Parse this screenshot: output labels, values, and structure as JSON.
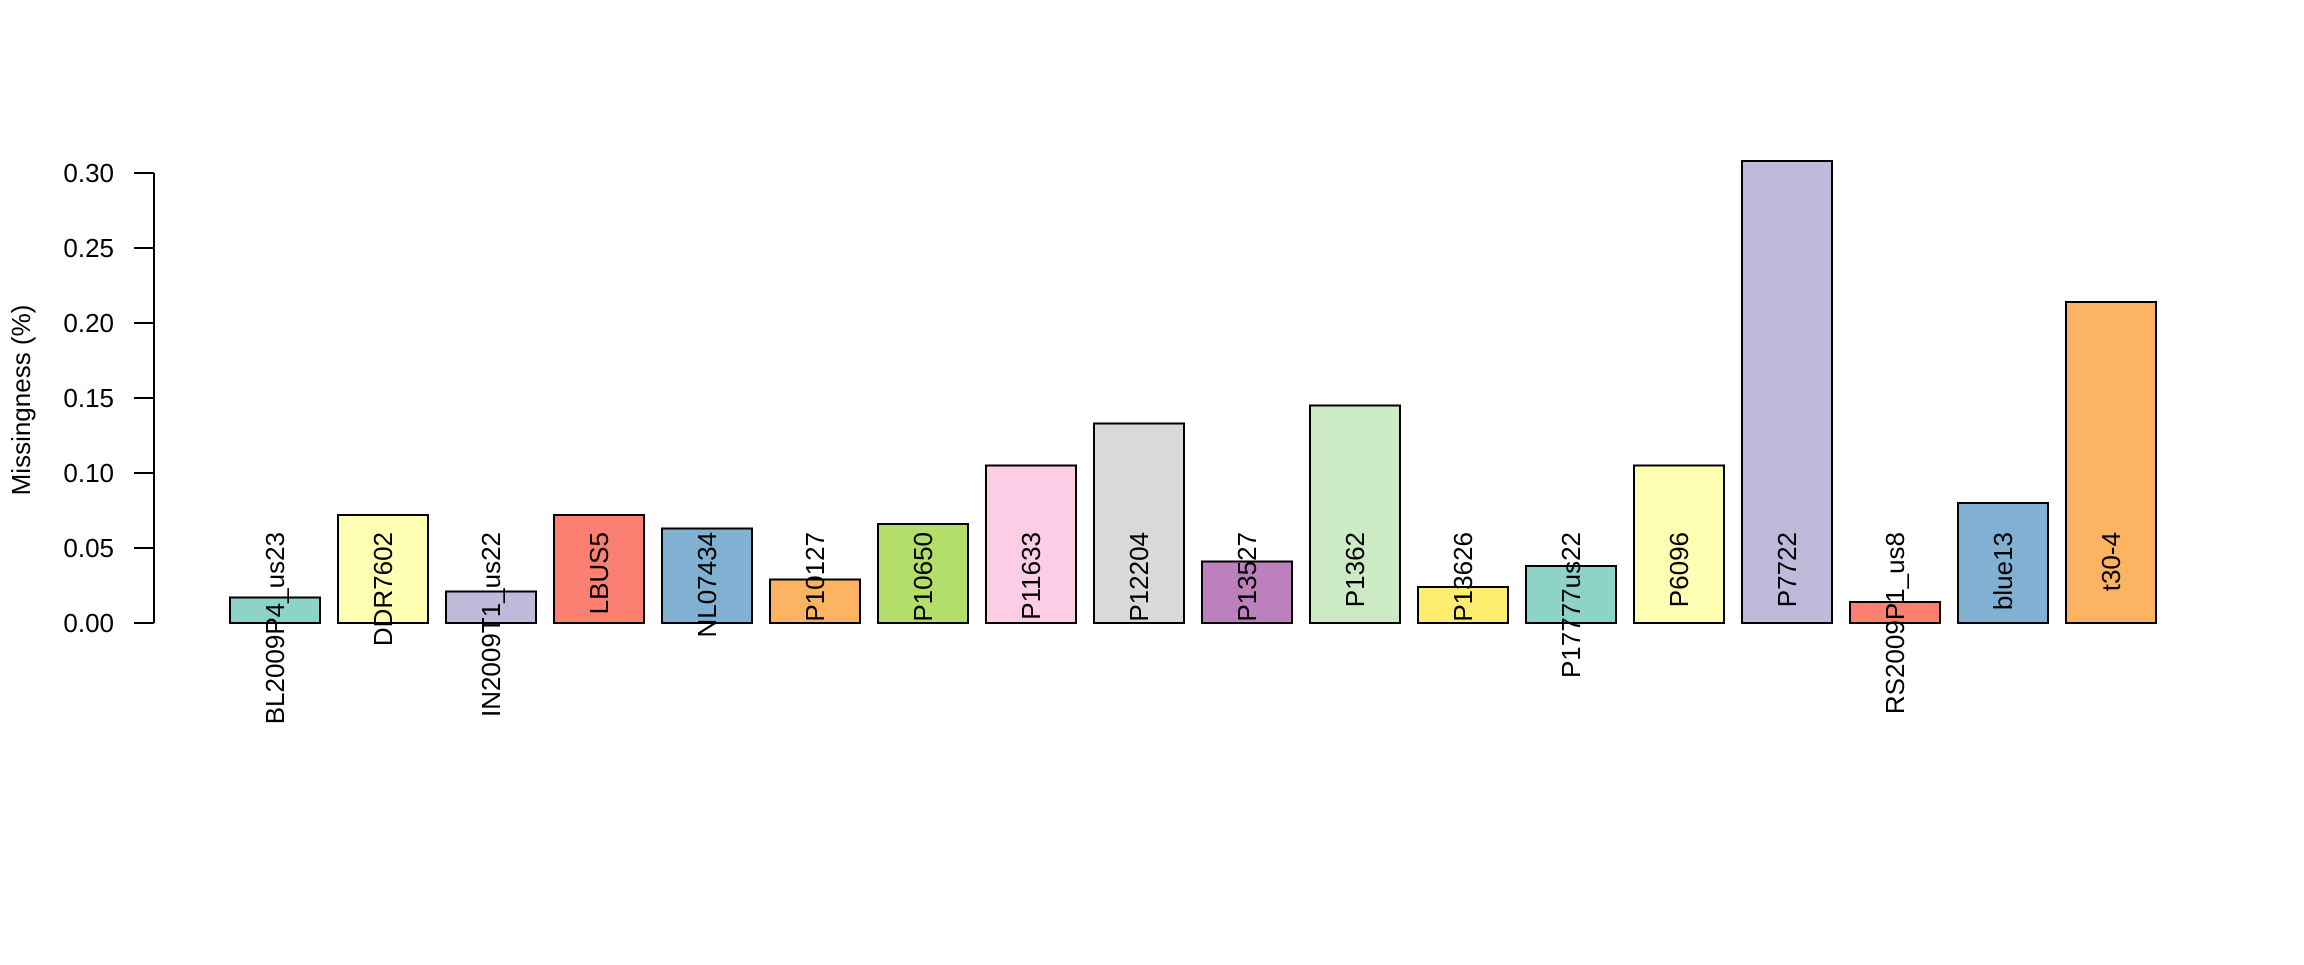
{
  "chart_data": {
    "type": "bar",
    "title": "",
    "xlabel": "",
    "ylabel": "Missingness (%)",
    "ylim": [
      0,
      0.3
    ],
    "yticks": [
      "0.00",
      "0.05",
      "0.10",
      "0.15",
      "0.20",
      "0.25",
      "0.30"
    ],
    "grid": false,
    "categories": [
      "BL2009P4_us23",
      "DDR7602",
      "IN2009T1_us22",
      "LBUS5",
      "NL07434",
      "P10127",
      "P10650",
      "P11633",
      "P12204",
      "P13527",
      "P1362",
      "P13626",
      "P17777us22",
      "P6096",
      "P7722",
      "RS2009P1_us8",
      "blue13",
      "t30-4"
    ],
    "values": [
      0.017,
      0.072,
      0.021,
      0.072,
      0.063,
      0.029,
      0.066,
      0.105,
      0.133,
      0.041,
      0.145,
      0.024,
      0.038,
      0.105,
      0.308,
      0.014,
      0.08,
      0.214
    ],
    "colors": [
      "#8DD3C7",
      "#FFFFB3",
      "#BEBADA",
      "#FB8072",
      "#80B1D3",
      "#FDB462",
      "#B3DE69",
      "#FCCDE5",
      "#D9D9D9",
      "#BC80BD",
      "#CCEBC5",
      "#FFED6F",
      "#8DD3C7",
      "#FFFFB3",
      "#BEBADA",
      "#FB8072",
      "#80B1D3",
      "#FDB462"
    ]
  }
}
